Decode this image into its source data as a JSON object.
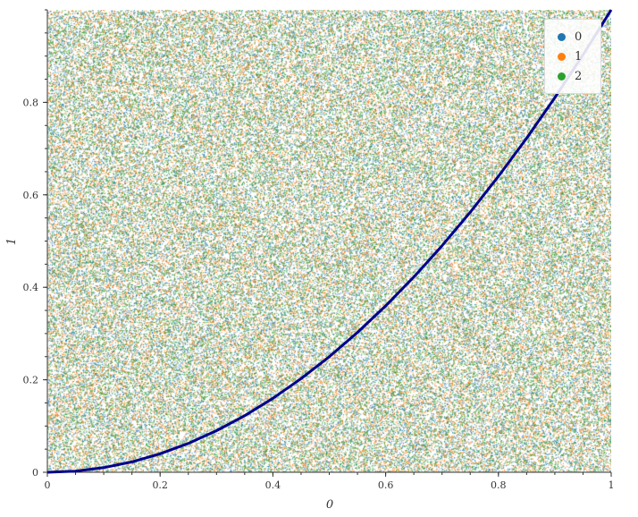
{
  "chart_data": {
    "type": "scatter",
    "title": "",
    "xlabel": "0",
    "ylabel": "1",
    "xlim": [
      0,
      1
    ],
    "ylim": [
      0,
      1
    ],
    "x_ticks": [
      "0",
      "0.2",
      "0.4",
      "0.6",
      "0.8",
      "1"
    ],
    "y_ticks": [
      "0",
      "0.2",
      "0.4",
      "0.6",
      "0.8"
    ],
    "grid": false,
    "legend_position": "top-right",
    "series": [
      {
        "name": "0",
        "color": "#1f77b4",
        "distribution": "uniform",
        "x_range": [
          0,
          1
        ],
        "y_range": [
          0,
          1
        ]
      },
      {
        "name": "1",
        "color": "#ff7f0e",
        "distribution": "uniform",
        "x_range": [
          0,
          1
        ],
        "y_range": [
          0,
          1
        ]
      },
      {
        "name": "2",
        "color": "#2ca02c",
        "distribution": "uniform",
        "x_range": [
          0,
          1
        ],
        "y_range": [
          0,
          1
        ]
      }
    ],
    "curve": {
      "color": "#00008b",
      "x": [
        0,
        0.05,
        0.1,
        0.15,
        0.2,
        0.25,
        0.3,
        0.35,
        0.4,
        0.45,
        0.5,
        0.55,
        0.6,
        0.65,
        0.7,
        0.75,
        0.8,
        0.85,
        0.9,
        0.95,
        1.0
      ],
      "y": [
        0,
        0.0025,
        0.01,
        0.0225,
        0.04,
        0.0625,
        0.09,
        0.1225,
        0.16,
        0.2025,
        0.25,
        0.3025,
        0.36,
        0.4225,
        0.49,
        0.5625,
        0.64,
        0.7225,
        0.81,
        0.9025,
        1.0
      ]
    }
  }
}
